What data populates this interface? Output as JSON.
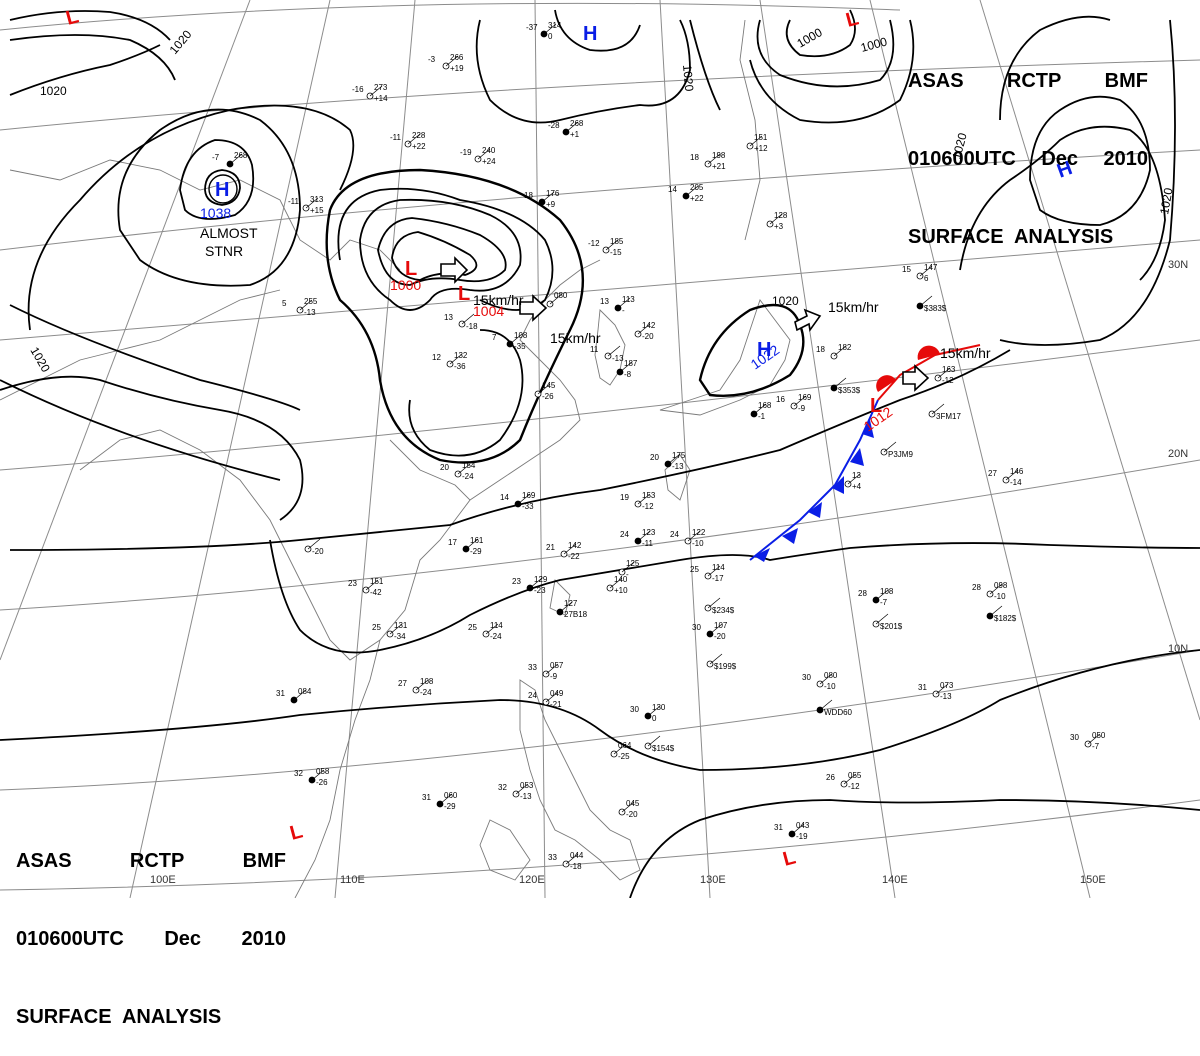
{
  "header": {
    "line1": [
      "ASAS",
      "RCTP",
      "BMF"
    ],
    "line2": [
      "010600UTC",
      "Dec",
      "2010"
    ],
    "line3": "SURFACE  ANALYSIS"
  },
  "isobar_labels": [
    "1020",
    "1020",
    "1020",
    "1020",
    "1020",
    "1020",
    "1020",
    "1000",
    "1000"
  ],
  "pressure_centers": [
    {
      "type": "H",
      "value": "1038",
      "note": [
        "ALMOST",
        "STNR"
      ]
    },
    {
      "type": "L",
      "value": "1000"
    },
    {
      "type": "L",
      "value": "1004"
    },
    {
      "type": "H",
      "value": "1022"
    },
    {
      "type": "L",
      "value": "1012"
    },
    {
      "type": "H",
      "value": ""
    },
    {
      "type": "H",
      "value": ""
    },
    {
      "type": "L",
      "value": ""
    },
    {
      "type": "L",
      "value": ""
    },
    {
      "type": "L",
      "value": ""
    },
    {
      "type": "L",
      "value": ""
    }
  ],
  "motion_labels": [
    "15km/hr",
    "15km/hr",
    "15km/hr",
    "15km/hr"
  ],
  "longitude_labels": [
    "100E",
    "110E",
    "120E",
    "130E",
    "140E",
    "150E"
  ],
  "latitude_labels": [
    "30N",
    "20N",
    "10N"
  ],
  "station_plots": [
    {
      "t": "-37",
      "p": "314",
      "c": "0"
    },
    {
      "t": "-3",
      "p": "266",
      "c": "+19"
    },
    {
      "t": "-16",
      "p": "273",
      "c": "+14"
    },
    {
      "t": "-7",
      "p": "268",
      "c": ""
    },
    {
      "t": "-11",
      "p": "228",
      "c": "+22"
    },
    {
      "t": "-19",
      "p": "240",
      "c": "+24"
    },
    {
      "t": "-28",
      "p": "268",
      "c": "+1"
    },
    {
      "t": "18",
      "p": "198",
      "c": "+21"
    },
    {
      "t": "",
      "p": "151",
      "c": "+12"
    },
    {
      "t": "14",
      "p": "205",
      "c": "+22"
    },
    {
      "t": "",
      "p": "128",
      "c": "+3"
    },
    {
      "t": "-11",
      "p": "313",
      "c": "+15"
    },
    {
      "t": "18",
      "p": "176",
      "c": "+9"
    },
    {
      "t": "-12",
      "p": "185",
      "c": "-15"
    },
    {
      "t": "15",
      "p": "147",
      "c": "6"
    },
    {
      "t": "",
      "p": "",
      "c": "$383$"
    },
    {
      "t": "5",
      "p": "255",
      "c": "-13"
    },
    {
      "t": "13",
      "p": "",
      "c": "-18"
    },
    {
      "t": "7",
      "p": "108",
      "c": "-35"
    },
    {
      "t": "12",
      "p": "132",
      "c": "-36"
    },
    {
      "t": "",
      "p": "080",
      "c": ""
    },
    {
      "t": "13",
      "p": "113",
      "c": "-"
    },
    {
      "t": "",
      "p": "142",
      "c": "-20"
    },
    {
      "t": "11",
      "p": "",
      "c": "-13"
    },
    {
      "t": "",
      "p": "187",
      "c": "-8"
    },
    {
      "t": "",
      "p": "145",
      "c": "-26"
    },
    {
      "t": "18",
      "p": "182",
      "c": ""
    },
    {
      "t": "",
      "p": "",
      "c": "$353$"
    },
    {
      "t": "",
      "p": "163",
      "c": "-12"
    },
    {
      "t": "",
      "p": "",
      "c": "3FM17"
    },
    {
      "t": "",
      "p": "168",
      "c": "-1"
    },
    {
      "t": "16",
      "p": "169",
      "c": "-9"
    },
    {
      "t": "20",
      "p": "154",
      "c": "-24"
    },
    {
      "t": "20",
      "p": "175",
      "c": "-13"
    },
    {
      "t": "",
      "p": "",
      "c": "P3JM9"
    },
    {
      "t": "27",
      "p": "146",
      "c": "-14"
    },
    {
      "t": "14",
      "p": "169",
      "c": "-33"
    },
    {
      "t": "19",
      "p": "153",
      "c": "-12"
    },
    {
      "t": "",
      "p": "13",
      "c": "+4"
    },
    {
      "t": "17",
      "p": "161",
      "c": "-29"
    },
    {
      "t": "",
      "p": "",
      "c": "-20"
    },
    {
      "t": "21",
      "p": "142",
      "c": "-22"
    },
    {
      "t": "24",
      "p": "123",
      "c": "-11"
    },
    {
      "t": "24",
      "p": "122",
      "c": "-10"
    },
    {
      "t": "23",
      "p": "151",
      "c": "-42"
    },
    {
      "t": "23",
      "p": "129",
      "c": "-23"
    },
    {
      "t": "",
      "p": "140",
      "c": "+10"
    },
    {
      "t": "",
      "p": "125",
      "c": "-"
    },
    {
      "t": "",
      "p": "127",
      "c": "27B18"
    },
    {
      "t": "25",
      "p": "114",
      "c": "-17"
    },
    {
      "t": "",
      "p": "",
      "c": "$234$"
    },
    {
      "t": "28",
      "p": "108",
      "c": "-7"
    },
    {
      "t": "",
      "p": "",
      "c": "$201$"
    },
    {
      "t": "28",
      "p": "098",
      "c": "-10"
    },
    {
      "t": "",
      "p": "",
      "c": "$182$"
    },
    {
      "t": "25",
      "p": "131",
      "c": "-34"
    },
    {
      "t": "25",
      "p": "114",
      "c": "-24"
    },
    {
      "t": "30",
      "p": "107",
      "c": "-20"
    },
    {
      "t": "",
      "p": "",
      "c": "$199$"
    },
    {
      "t": "27",
      "p": "108",
      "c": "-24"
    },
    {
      "t": "31",
      "p": "084",
      "c": ""
    },
    {
      "t": "33",
      "p": "057",
      "c": "-9"
    },
    {
      "t": "24",
      "p": "049",
      "c": "-21"
    },
    {
      "t": "30",
      "p": "130",
      "c": "0"
    },
    {
      "t": "",
      "p": "",
      "c": "$154$"
    },
    {
      "t": "30",
      "p": "080",
      "c": "-10"
    },
    {
      "t": "",
      "p": "",
      "c": "WDD60"
    },
    {
      "t": "31",
      "p": "073",
      "c": "-13"
    },
    {
      "t": "30",
      "p": "050",
      "c": "-7"
    },
    {
      "t": "32",
      "p": "058",
      "c": "-26"
    },
    {
      "t": "",
      "p": "064",
      "c": "-25"
    },
    {
      "t": "26",
      "p": "055",
      "c": "-12"
    },
    {
      "t": "31",
      "p": "060",
      "c": "-29"
    },
    {
      "t": "32",
      "p": "053",
      "c": "-13"
    },
    {
      "t": "",
      "p": "045",
      "c": "-20"
    },
    {
      "t": "31",
      "p": "043",
      "c": "-19"
    },
    {
      "t": "33",
      "p": "044",
      "c": "-18"
    }
  ],
  "colors": {
    "high": "#0a1ee6",
    "low": "#e60a0a",
    "isobar": "#000000",
    "grid": "#8c8c8c",
    "coast": "#7a7a7a",
    "front_warm": "#e60a0a",
    "front_cold": "#0a1ee6"
  }
}
